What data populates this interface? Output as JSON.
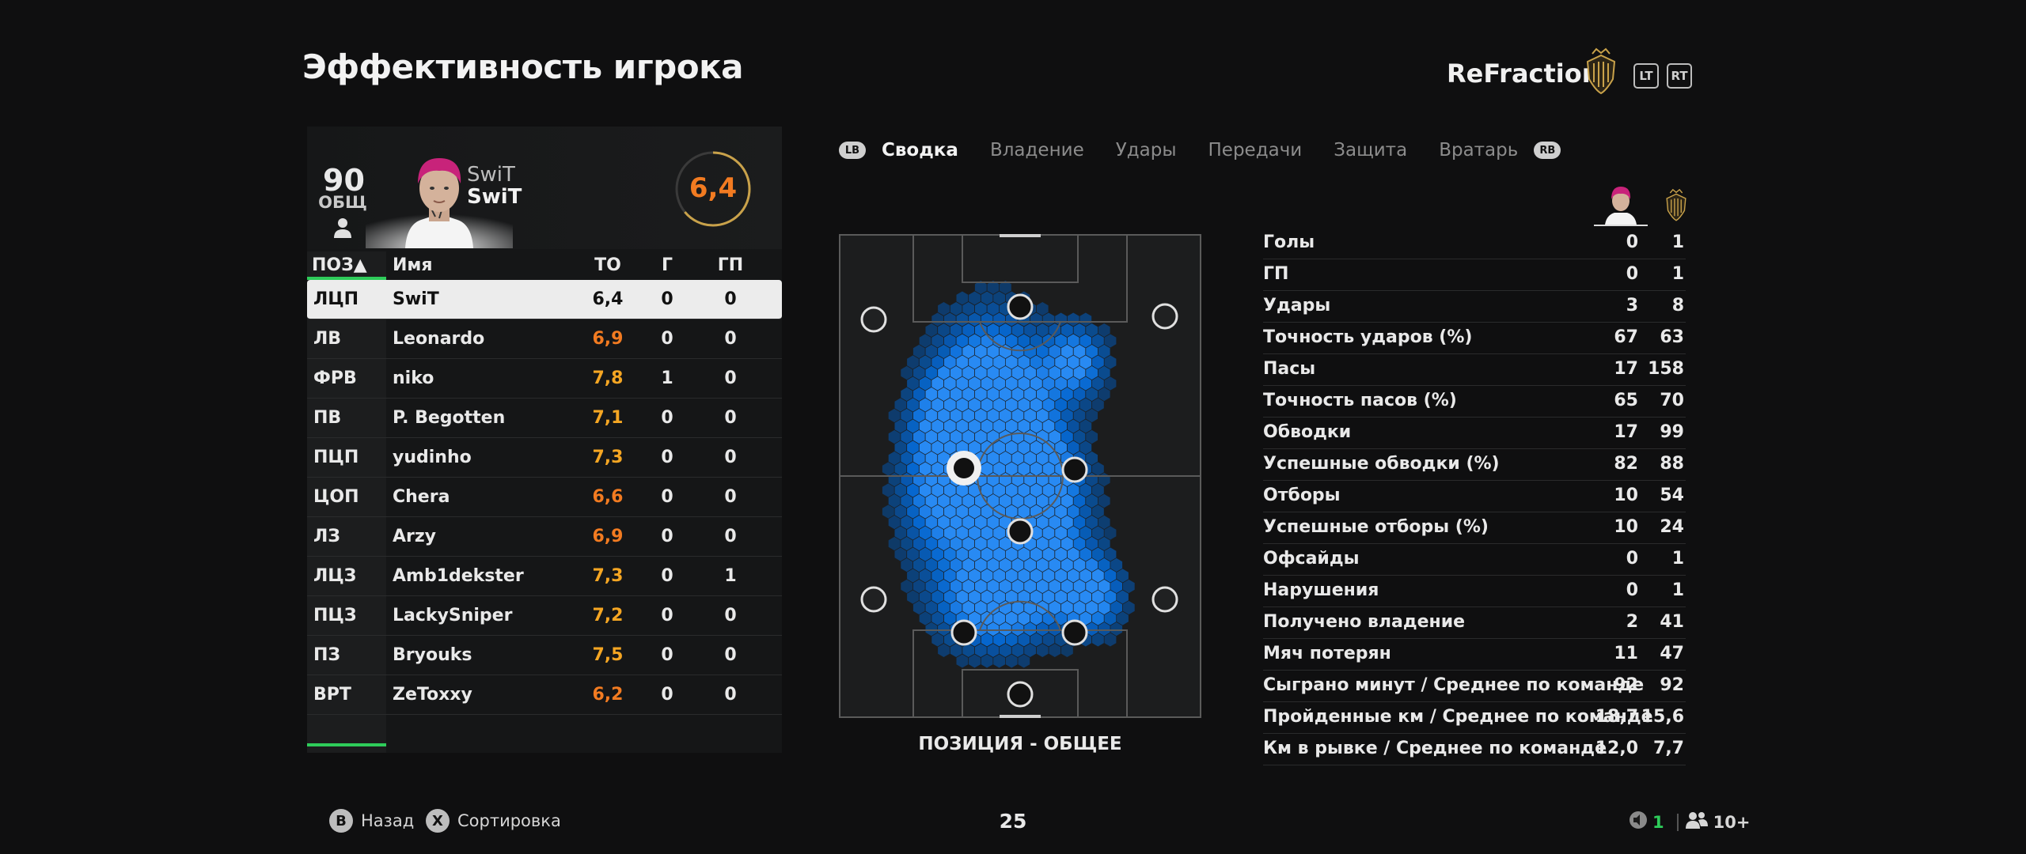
{
  "header": {
    "title": "Эффективность игрока",
    "team_name": "ReFraction",
    "lt_label": "LT",
    "rt_label": "RT"
  },
  "player": {
    "overall": "90",
    "overall_label": "ОБЩ",
    "name_top": "SwiT",
    "name_bottom": "SwiT",
    "rating": "6,4",
    "rating_fraction": 0.64
  },
  "table": {
    "headers": {
      "pos": "ПОЗ▲",
      "name": "Имя",
      "to": "ТО",
      "g": "Г",
      "gp": "ГП"
    },
    "rows": [
      {
        "pos": "ЛЦП",
        "name": "SwiT",
        "to": "6,4",
        "g": "0",
        "gp": "0",
        "selected": true,
        "color": "#111111"
      },
      {
        "pos": "ЛВ",
        "name": "Leonardo",
        "to": "6,9",
        "g": "0",
        "gp": "0",
        "color": "#f27b21"
      },
      {
        "pos": "ФРВ",
        "name": "niko",
        "to": "7,8",
        "g": "1",
        "gp": "0",
        "color": "#f5a623"
      },
      {
        "pos": "ПВ",
        "name": "P. Begotten",
        "to": "7,1",
        "g": "0",
        "gp": "0",
        "color": "#f5a623"
      },
      {
        "pos": "ПЦП",
        "name": "yudinho",
        "to": "7,3",
        "g": "0",
        "gp": "0",
        "color": "#f5a623"
      },
      {
        "pos": "ЦОП",
        "name": "Chera",
        "to": "6,6",
        "g": "0",
        "gp": "0",
        "color": "#f27b21"
      },
      {
        "pos": "ЛЗ",
        "name": "Arzy",
        "to": "6,9",
        "g": "0",
        "gp": "0",
        "color": "#f27b21"
      },
      {
        "pos": "ЛЦЗ",
        "name": "Amb1dekster",
        "to": "7,3",
        "g": "0",
        "gp": "1",
        "color": "#f5a623"
      },
      {
        "pos": "ПЦЗ",
        "name": "LackySniper",
        "to": "7,2",
        "g": "0",
        "gp": "0",
        "color": "#f5a623"
      },
      {
        "pos": "ПЗ",
        "name": "Bryouks",
        "to": "7,5",
        "g": "0",
        "gp": "0",
        "color": "#f5a623"
      },
      {
        "pos": "ВРТ",
        "name": "ZeToxxy",
        "to": "6,2",
        "g": "0",
        "gp": "0",
        "color": "#f27b21"
      }
    ]
  },
  "tabs": {
    "lb": "LB",
    "rb": "RB",
    "items": [
      "Сводка",
      "Владение",
      "Удары",
      "Передачи",
      "Защита",
      "Вратарь"
    ],
    "active_index": 0
  },
  "pitch": {
    "caption": "ПОЗИЦИЯ - ОБЩЕЕ"
  },
  "stats": [
    {
      "label": "Голы",
      "player": "0",
      "team": "1"
    },
    {
      "label": "ГП",
      "player": "0",
      "team": "1"
    },
    {
      "label": "Удары",
      "player": "3",
      "team": "8"
    },
    {
      "label": "Точность ударов (%)",
      "player": "67",
      "team": "63"
    },
    {
      "label": "Пасы",
      "player": "17",
      "team": "158"
    },
    {
      "label": "Точность пасов (%)",
      "player": "65",
      "team": "70"
    },
    {
      "label": "Обводки",
      "player": "17",
      "team": "99"
    },
    {
      "label": "Успешные обводки (%)",
      "player": "82",
      "team": "88"
    },
    {
      "label": "Отборы",
      "player": "10",
      "team": "54"
    },
    {
      "label": "Успешные отборы (%)",
      "player": "10",
      "team": "24"
    },
    {
      "label": "Офсайды",
      "player": "0",
      "team": "1"
    },
    {
      "label": "Нарушения",
      "player": "0",
      "team": "1"
    },
    {
      "label": "Получено владение",
      "player": "2",
      "team": "41"
    },
    {
      "label": "Мяч потерян",
      "player": "11",
      "team": "47"
    },
    {
      "label": "Сыграно минут / Среднее по команде",
      "player": "92",
      "team": "92"
    },
    {
      "label": "Пройденные км / Среднее по команде",
      "player": "18,7",
      "team": "15,6"
    },
    {
      "label": "Км в рывке / Среднее по команде",
      "player": "12,0",
      "team": "7,7"
    }
  ],
  "footer": {
    "back_key": "B",
    "back_label": "Назад",
    "sort_key": "X",
    "sort_label": "Сортировка",
    "page": "25",
    "online_count": "1",
    "party_count": "10+"
  },
  "colors": {
    "accent_green": "#2ecc5a",
    "rating_orange": "#f27b21",
    "heat_blue": "#1a8cff"
  }
}
